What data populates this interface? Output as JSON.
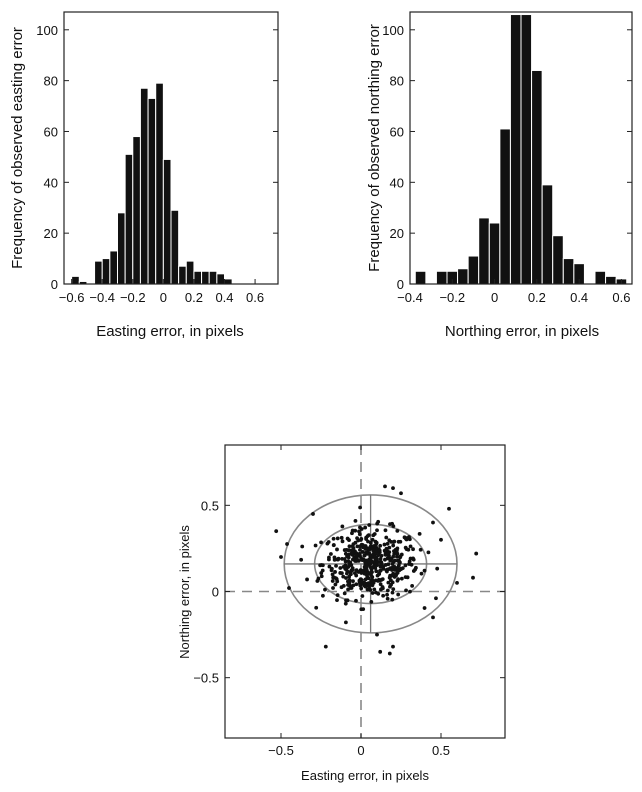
{
  "chart_data": [
    {
      "type": "bar",
      "xlabel": "Easting error, in pixels",
      "ylabel": "Frequency of observed easting error",
      "xlim": [
        -0.65,
        0.75
      ],
      "ylim": [
        0,
        107
      ],
      "xticks": [
        -0.6,
        -0.4,
        -0.2,
        0,
        0.2,
        0.4,
        0.6
      ],
      "xtick_labels": [
        "−0.6",
        "−0.4",
        "−0.2",
        "0",
        "0.2",
        "0.4",
        "0.6"
      ],
      "yticks": [
        0,
        20,
        40,
        60,
        80,
        100
      ],
      "bin_width": 0.05,
      "bin_starts": [
        -0.6,
        -0.55,
        -0.5,
        -0.45,
        -0.4,
        -0.35,
        -0.3,
        -0.25,
        -0.2,
        -0.15,
        -0.1,
        -0.05,
        0,
        0.05,
        0.1,
        0.15,
        0.2,
        0.25,
        0.3,
        0.35,
        0.4,
        0.45,
        0.5,
        0.55,
        0.6,
        0.65
      ],
      "values": [
        3,
        1,
        0,
        9,
        10,
        13,
        28,
        51,
        58,
        77,
        73,
        79,
        49,
        29,
        7,
        9,
        5,
        5,
        5,
        4,
        2,
        0,
        0,
        0,
        0,
        0
      ],
      "grid": false
    },
    {
      "type": "bar",
      "xlabel": "Northing error, in pixels",
      "ylabel": "Frequency of observed northing error",
      "xlim": [
        -0.4,
        0.65
      ],
      "ylim": [
        0,
        107
      ],
      "xticks": [
        -0.4,
        -0.2,
        0,
        0.2,
        0.4,
        0.6
      ],
      "xtick_labels": [
        "−0.4",
        "−0.2",
        "0",
        "0.2",
        "0.4",
        "0.6"
      ],
      "yticks": [
        0,
        20,
        40,
        60,
        80,
        100
      ],
      "bin_width": 0.05,
      "bin_starts": [
        -0.375,
        -0.325,
        -0.275,
        -0.225,
        -0.175,
        -0.125,
        -0.075,
        -0.025,
        0.025,
        0.075,
        0.125,
        0.175,
        0.225,
        0.275,
        0.325,
        0.375,
        0.425,
        0.475,
        0.525,
        0.575
      ],
      "values": [
        5,
        0,
        5,
        5,
        6,
        11,
        26,
        24,
        61,
        106,
        106,
        84,
        39,
        19,
        10,
        8,
        0,
        5,
        3,
        2
      ],
      "grid": false
    },
    {
      "type": "scatter",
      "xlabel": "Easting error, in pixels",
      "ylabel": "Northing error, in pixels",
      "xlim": [
        -0.85,
        0.9
      ],
      "ylim": [
        -0.85,
        0.85
      ],
      "xticks": [
        -0.5,
        0,
        0.5
      ],
      "xtick_labels": [
        "−0.5",
        "0",
        "0.5"
      ],
      "yticks": [
        -0.5,
        0,
        0.5
      ],
      "ytick_labels": [
        "−0.5",
        "0",
        "0.5"
      ],
      "mean": [
        0.06,
        0.16
      ],
      "ellipses": [
        {
          "center": [
            0.06,
            0.16
          ],
          "rx": 0.35,
          "ry": 0.23
        },
        {
          "center": [
            0.06,
            0.16
          ],
          "rx": 0.54,
          "ry": 0.4
        }
      ],
      "reference_lines": {
        "x": 0,
        "y": 0,
        "style": "dashed"
      },
      "points": {
        "count": 480,
        "center": [
          0.06,
          0.16
        ],
        "sd": [
          0.15,
          0.1
        ]
      },
      "outliers": [
        [
          -0.53,
          0.35
        ],
        [
          -0.5,
          0.2
        ],
        [
          -0.45,
          0.02
        ],
        [
          -0.22,
          -0.32
        ],
        [
          -0.15,
          -0.05
        ],
        [
          0.15,
          0.61
        ],
        [
          0.2,
          0.6
        ],
        [
          0.18,
          -0.36
        ],
        [
          0.2,
          -0.32
        ],
        [
          0.55,
          0.48
        ],
        [
          0.72,
          0.22
        ],
        [
          0.7,
          0.08
        ],
        [
          0.6,
          0.05
        ],
        [
          0.45,
          -0.15
        ],
        [
          0.45,
          0.4
        ],
        [
          0.5,
          0.3
        ],
        [
          -0.3,
          0.45
        ],
        [
          0.1,
          -0.25
        ],
        [
          0.25,
          0.57
        ],
        [
          0.12,
          -0.35
        ]
      ],
      "grid": false
    }
  ]
}
